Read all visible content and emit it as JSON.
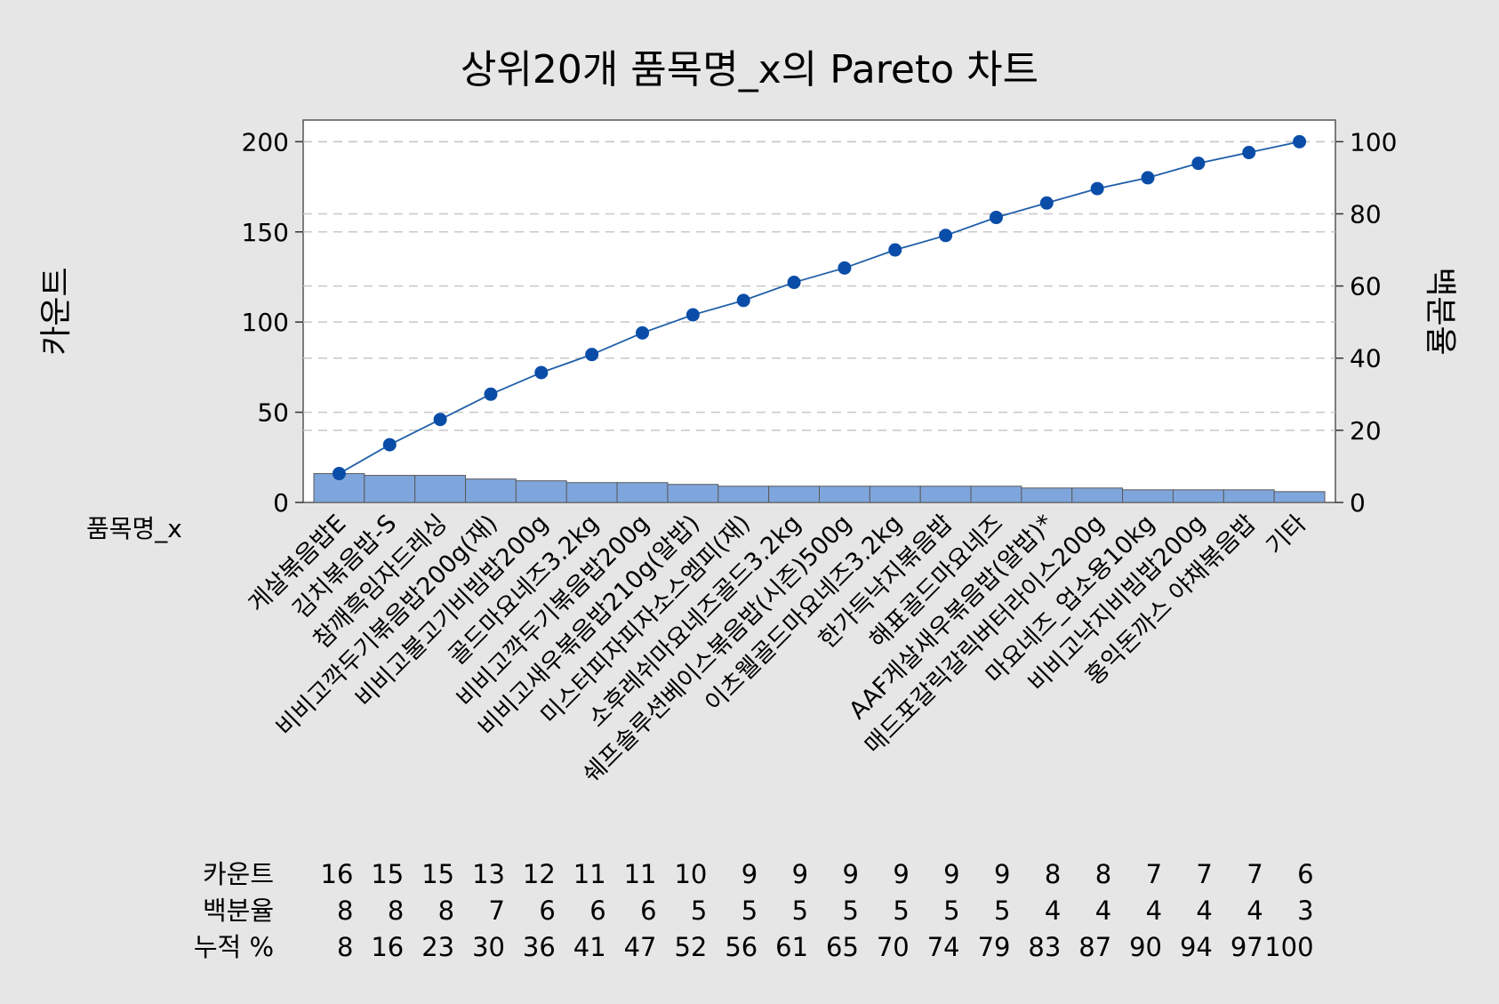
{
  "chart_data": {
    "type": "bar",
    "title": "상위20개 품목명_x의 Pareto 차트",
    "xlabel": "품목명_x",
    "ylabel": "카운트",
    "y2label": "백분율",
    "ylim": [
      0,
      212
    ],
    "y2lim": [
      0,
      106
    ],
    "yticks": [
      0,
      50,
      100,
      150,
      200
    ],
    "y2ticks": [
      0,
      20,
      40,
      60,
      80,
      100
    ],
    "grid": true,
    "colors": {
      "bar_fill": "#7fa6dc",
      "bar_stroke": "#5a5a5a",
      "line": "#1f5fa8",
      "marker": "#0a4da8",
      "plot_bg": "#ffffff",
      "background": "#e6e6e6",
      "grid": "#c8c8c8"
    },
    "categories": [
      "게살볶음밥E",
      "김치볶음밥-S",
      "참깨흑임자드레싱",
      "비비고깍두기볶음밥200g(재)",
      "비비고불고기비빔밥200g",
      "골드마요네즈3.2kg",
      "비비고깍두기볶음밥200g",
      "비비고새우볶음밥210g(알밥)",
      "미스터피자피자소스엠피(재)",
      "소후레쉬마요네즈골드3.2kg",
      "쉐프솔루션베이스볶음밥(시즌)500g",
      "이츠웰골드마요네즈3.2kg",
      "한가득낙지볶음밥",
      "해표골드마요네즈",
      "AAF게살새우볶음밥(알밥)*",
      "매드포갈릭갈릭버터라이스200g",
      "마요네즈_업소용10kg",
      "비비고낙지비빔밥200g",
      "홍익돈까스 야채볶음밥",
      "기타"
    ],
    "series": [
      {
        "name": "카운트",
        "values": [
          16,
          15,
          15,
          13,
          12,
          11,
          11,
          10,
          9,
          9,
          9,
          9,
          9,
          9,
          8,
          8,
          7,
          7,
          7,
          6
        ]
      },
      {
        "name": "누적 %",
        "values": [
          8,
          16,
          23,
          30,
          36,
          41,
          47,
          52,
          56,
          61,
          65,
          70,
          74,
          79,
          83,
          87,
          90,
          94,
          97,
          100
        ]
      }
    ],
    "table": {
      "row_labels": [
        "카운트",
        "백분율",
        "누적 %"
      ],
      "rows": [
        [
          "16",
          "15",
          "15",
          "13",
          "12",
          "11",
          "11",
          "10",
          "9",
          "9",
          "9",
          "9",
          "9",
          "9",
          "8",
          "8",
          "7",
          "7",
          "7",
          "6"
        ],
        [
          "8",
          "8",
          "8",
          "7",
          "6",
          "6",
          "6",
          "5",
          "5",
          "5",
          "5",
          "5",
          "5",
          "5",
          "4",
          "4",
          "4",
          "4",
          "4",
          "3"
        ],
        [
          "8",
          "16",
          "23",
          "30",
          "36",
          "41",
          "47",
          "52",
          "56",
          "61",
          "65",
          "70",
          "74",
          "79",
          "83",
          "87",
          "90",
          "94",
          "97",
          "100"
        ]
      ]
    }
  }
}
